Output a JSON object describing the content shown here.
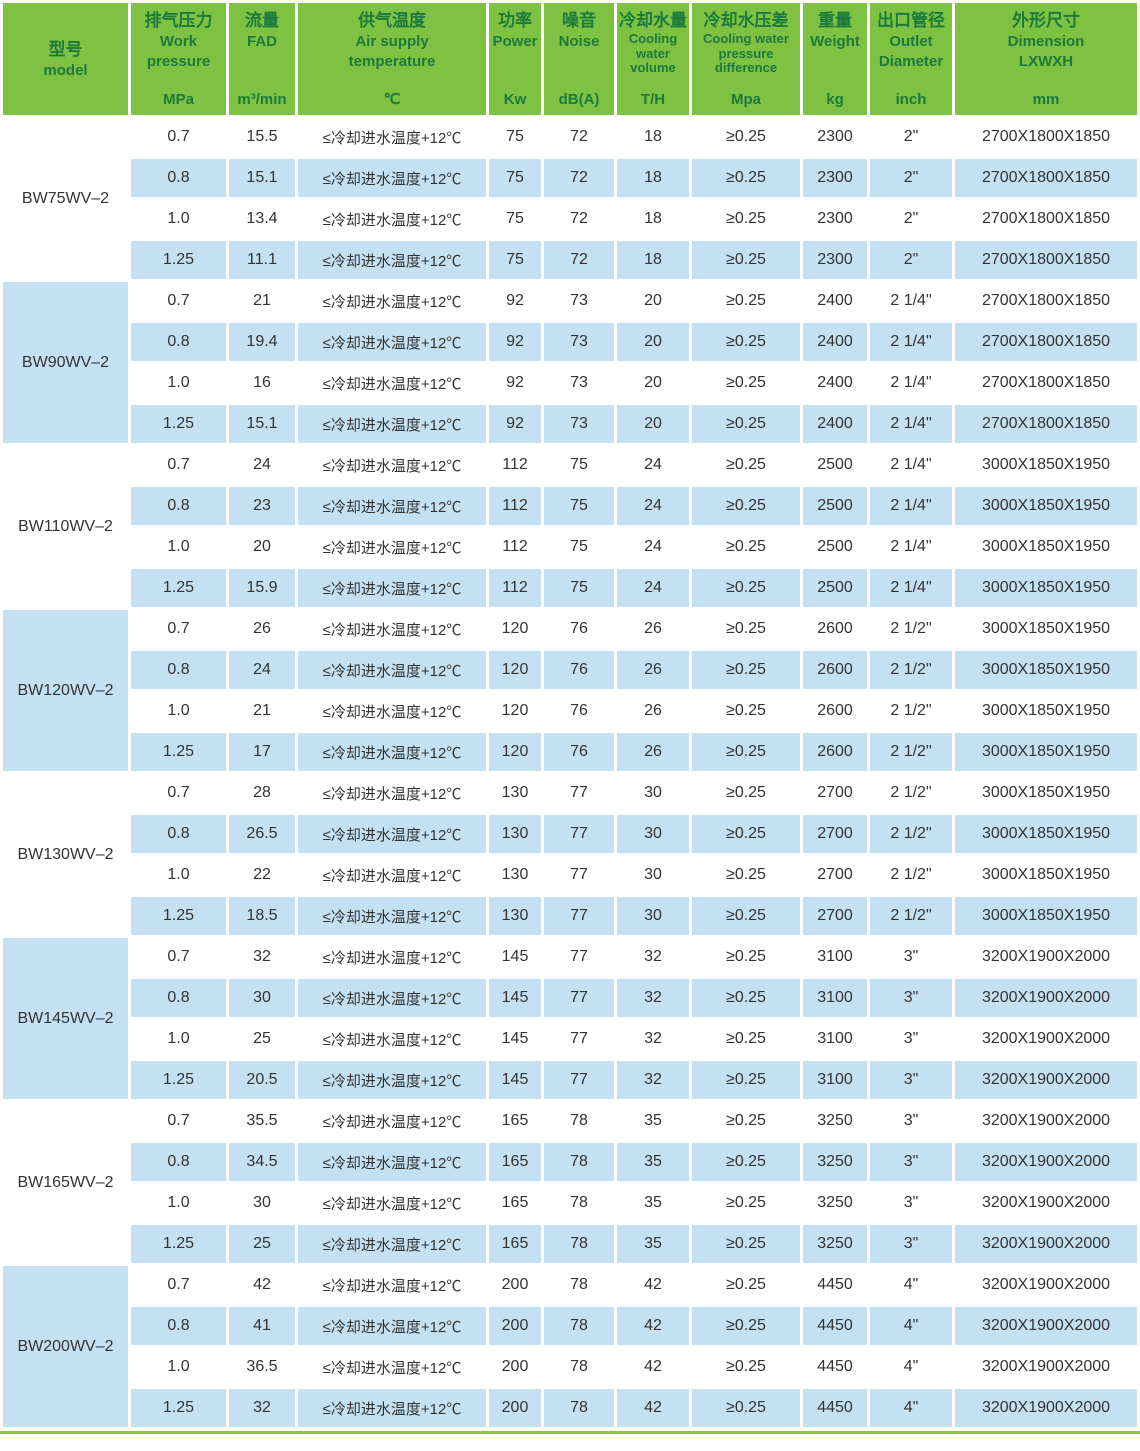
{
  "table": {
    "colors": {
      "header_green": "#7fc241",
      "header_text_green": "#1b7a3d",
      "row_blue": "#c3e1f2",
      "row_white": "#ffffff",
      "body_text": "#333333",
      "bottom_line_green": "#8cc63f"
    },
    "header": {
      "columns": [
        {
          "id": "model",
          "cn": "型号",
          "en": [
            "model"
          ],
          "unit": "",
          "small": false,
          "center": true
        },
        {
          "id": "pressure",
          "cn": "排气压力",
          "en": [
            "Work",
            "pressure"
          ],
          "unit": "MPa",
          "small": false,
          "center": false
        },
        {
          "id": "fad",
          "cn": "流量",
          "en": [
            "FAD"
          ],
          "unit": "m³/min",
          "small": false,
          "center": false
        },
        {
          "id": "temp",
          "cn": "供气温度",
          "en": [
            "Air supply",
            "temperature"
          ],
          "unit": "℃",
          "small": false,
          "center": false
        },
        {
          "id": "power",
          "cn": "功率",
          "en": [
            "Power"
          ],
          "unit": "Kw",
          "small": false,
          "center": false
        },
        {
          "id": "noise",
          "cn": "噪音",
          "en": [
            "Noise"
          ],
          "unit": "dB(A)",
          "small": false,
          "center": false
        },
        {
          "id": "cooling",
          "cn": "冷却水量",
          "en": [
            "Cooling",
            "water",
            "volume"
          ],
          "unit": "T/H",
          "small": true,
          "center": false
        },
        {
          "id": "pressure_diff",
          "cn": "冷却水压差",
          "en": [
            "Cooling water",
            "pressure",
            "difference"
          ],
          "unit": "Mpa",
          "small": true,
          "center": false
        },
        {
          "id": "weight",
          "cn": "重量",
          "en": [
            "Weight"
          ],
          "unit": "kg",
          "small": false,
          "center": false
        },
        {
          "id": "outlet",
          "cn": "出口管径",
          "en": [
            "Outlet",
            "Diameter"
          ],
          "unit": "inch",
          "small": false,
          "center": false
        },
        {
          "id": "dimension",
          "cn": "外形尺寸",
          "en": [
            "Dimension",
            "LXWXH"
          ],
          "unit": "mm",
          "small": false,
          "center": false
        }
      ]
    },
    "groups": [
      {
        "model": "BW75WV–2",
        "rows": [
          {
            "pressure": "0.7",
            "fad": "15.5",
            "temp": "≤冷却进水温度+12℃",
            "power": "75",
            "noise": "72",
            "cooling": "18",
            "pressure_diff": "≥0.25",
            "weight": "2300",
            "outlet": "2\"",
            "dimension": "2700X1800X1850"
          },
          {
            "pressure": "0.8",
            "fad": "15.1",
            "temp": "≤冷却进水温度+12℃",
            "power": "75",
            "noise": "72",
            "cooling": "18",
            "pressure_diff": "≥0.25",
            "weight": "2300",
            "outlet": "2\"",
            "dimension": "2700X1800X1850"
          },
          {
            "pressure": "1.0",
            "fad": "13.4",
            "temp": "≤冷却进水温度+12℃",
            "power": "75",
            "noise": "72",
            "cooling": "18",
            "pressure_diff": "≥0.25",
            "weight": "2300",
            "outlet": "2\"",
            "dimension": "2700X1800X1850"
          },
          {
            "pressure": "1.25",
            "fad": "11.1",
            "temp": "≤冷却进水温度+12℃",
            "power": "75",
            "noise": "72",
            "cooling": "18",
            "pressure_diff": "≥0.25",
            "weight": "2300",
            "outlet": "2\"",
            "dimension": "2700X1800X1850"
          }
        ]
      },
      {
        "model": "BW90WV–2",
        "rows": [
          {
            "pressure": "0.7",
            "fad": "21",
            "temp": "≤冷却进水温度+12℃",
            "power": "92",
            "noise": "73",
            "cooling": "20",
            "pressure_diff": "≥0.25",
            "weight": "2400",
            "outlet": "2 1/4\"",
            "dimension": "2700X1800X1850"
          },
          {
            "pressure": "0.8",
            "fad": "19.4",
            "temp": "≤冷却进水温度+12℃",
            "power": "92",
            "noise": "73",
            "cooling": "20",
            "pressure_diff": "≥0.25",
            "weight": "2400",
            "outlet": "2 1/4\"",
            "dimension": "2700X1800X1850"
          },
          {
            "pressure": "1.0",
            "fad": "16",
            "temp": "≤冷却进水温度+12℃",
            "power": "92",
            "noise": "73",
            "cooling": "20",
            "pressure_diff": "≥0.25",
            "weight": "2400",
            "outlet": "2 1/4\"",
            "dimension": "2700X1800X1850"
          },
          {
            "pressure": "1.25",
            "fad": "15.1",
            "temp": "≤冷却进水温度+12℃",
            "power": "92",
            "noise": "73",
            "cooling": "20",
            "pressure_diff": "≥0.25",
            "weight": "2400",
            "outlet": "2 1/4\"",
            "dimension": "2700X1800X1850"
          }
        ]
      },
      {
        "model": "BW110WV–2",
        "rows": [
          {
            "pressure": "0.7",
            "fad": "24",
            "temp": "≤冷却进水温度+12℃",
            "power": "112",
            "noise": "75",
            "cooling": "24",
            "pressure_diff": "≥0.25",
            "weight": "2500",
            "outlet": "2 1/4\"",
            "dimension": "3000X1850X1950"
          },
          {
            "pressure": "0.8",
            "fad": "23",
            "temp": "≤冷却进水温度+12℃",
            "power": "112",
            "noise": "75",
            "cooling": "24",
            "pressure_diff": "≥0.25",
            "weight": "2500",
            "outlet": "2 1/4\"",
            "dimension": "3000X1850X1950"
          },
          {
            "pressure": "1.0",
            "fad": "20",
            "temp": "≤冷却进水温度+12℃",
            "power": "112",
            "noise": "75",
            "cooling": "24",
            "pressure_diff": "≥0.25",
            "weight": "2500",
            "outlet": "2 1/4\"",
            "dimension": "3000X1850X1950"
          },
          {
            "pressure": "1.25",
            "fad": "15.9",
            "temp": "≤冷却进水温度+12℃",
            "power": "112",
            "noise": "75",
            "cooling": "24",
            "pressure_diff": "≥0.25",
            "weight": "2500",
            "outlet": "2 1/4\"",
            "dimension": "3000X1850X1950"
          }
        ]
      },
      {
        "model": "BW120WV–2",
        "rows": [
          {
            "pressure": "0.7",
            "fad": "26",
            "temp": "≤冷却进水温度+12℃",
            "power": "120",
            "noise": "76",
            "cooling": "26",
            "pressure_diff": "≥0.25",
            "weight": "2600",
            "outlet": "2 1/2\"",
            "dimension": "3000X1850X1950"
          },
          {
            "pressure": "0.8",
            "fad": "24",
            "temp": "≤冷却进水温度+12℃",
            "power": "120",
            "noise": "76",
            "cooling": "26",
            "pressure_diff": "≥0.25",
            "weight": "2600",
            "outlet": "2 1/2\"",
            "dimension": "3000X1850X1950"
          },
          {
            "pressure": "1.0",
            "fad": "21",
            "temp": "≤冷却进水温度+12℃",
            "power": "120",
            "noise": "76",
            "cooling": "26",
            "pressure_diff": "≥0.25",
            "weight": "2600",
            "outlet": "2 1/2\"",
            "dimension": "3000X1850X1950"
          },
          {
            "pressure": "1.25",
            "fad": "17",
            "temp": "≤冷却进水温度+12℃",
            "power": "120",
            "noise": "76",
            "cooling": "26",
            "pressure_diff": "≥0.25",
            "weight": "2600",
            "outlet": "2 1/2\"",
            "dimension": "3000X1850X1950"
          }
        ]
      },
      {
        "model": "BW130WV–2",
        "rows": [
          {
            "pressure": "0.7",
            "fad": "28",
            "temp": "≤冷却进水温度+12℃",
            "power": "130",
            "noise": "77",
            "cooling": "30",
            "pressure_diff": "≥0.25",
            "weight": "2700",
            "outlet": "2 1/2\"",
            "dimension": "3000X1850X1950"
          },
          {
            "pressure": "0.8",
            "fad": "26.5",
            "temp": "≤冷却进水温度+12℃",
            "power": "130",
            "noise": "77",
            "cooling": "30",
            "pressure_diff": "≥0.25",
            "weight": "2700",
            "outlet": "2 1/2\"",
            "dimension": "3000X1850X1950"
          },
          {
            "pressure": "1.0",
            "fad": "22",
            "temp": "≤冷却进水温度+12℃",
            "power": "130",
            "noise": "77",
            "cooling": "30",
            "pressure_diff": "≥0.25",
            "weight": "2700",
            "outlet": "2 1/2\"",
            "dimension": "3000X1850X1950"
          },
          {
            "pressure": "1.25",
            "fad": "18.5",
            "temp": "≤冷却进水温度+12℃",
            "power": "130",
            "noise": "77",
            "cooling": "30",
            "pressure_diff": "≥0.25",
            "weight": "2700",
            "outlet": "2 1/2\"",
            "dimension": "3000X1850X1950"
          }
        ]
      },
      {
        "model": "BW145WV–2",
        "rows": [
          {
            "pressure": "0.7",
            "fad": "32",
            "temp": "≤冷却进水温度+12℃",
            "power": "145",
            "noise": "77",
            "cooling": "32",
            "pressure_diff": "≥0.25",
            "weight": "3100",
            "outlet": "3\"",
            "dimension": "3200X1900X2000"
          },
          {
            "pressure": "0.8",
            "fad": "30",
            "temp": "≤冷却进水温度+12℃",
            "power": "145",
            "noise": "77",
            "cooling": "32",
            "pressure_diff": "≥0.25",
            "weight": "3100",
            "outlet": "3\"",
            "dimension": "3200X1900X2000"
          },
          {
            "pressure": "1.0",
            "fad": "25",
            "temp": "≤冷却进水温度+12℃",
            "power": "145",
            "noise": "77",
            "cooling": "32",
            "pressure_diff": "≥0.25",
            "weight": "3100",
            "outlet": "3\"",
            "dimension": "3200X1900X2000"
          },
          {
            "pressure": "1.25",
            "fad": "20.5",
            "temp": "≤冷却进水温度+12℃",
            "power": "145",
            "noise": "77",
            "cooling": "32",
            "pressure_diff": "≥0.25",
            "weight": "3100",
            "outlet": "3\"",
            "dimension": "3200X1900X2000"
          }
        ]
      },
      {
        "model": "BW165WV–2",
        "rows": [
          {
            "pressure": "0.7",
            "fad": "35.5",
            "temp": "≤冷却进水温度+12℃",
            "power": "165",
            "noise": "78",
            "cooling": "35",
            "pressure_diff": "≥0.25",
            "weight": "3250",
            "outlet": "3\"",
            "dimension": "3200X1900X2000"
          },
          {
            "pressure": "0.8",
            "fad": "34.5",
            "temp": "≤冷却进水温度+12℃",
            "power": "165",
            "noise": "78",
            "cooling": "35",
            "pressure_diff": "≥0.25",
            "weight": "3250",
            "outlet": "3\"",
            "dimension": "3200X1900X2000"
          },
          {
            "pressure": "1.0",
            "fad": "30",
            "temp": "≤冷却进水温度+12℃",
            "power": "165",
            "noise": "78",
            "cooling": "35",
            "pressure_diff": "≥0.25",
            "weight": "3250",
            "outlet": "3\"",
            "dimension": "3200X1900X2000"
          },
          {
            "pressure": "1.25",
            "fad": "25",
            "temp": "≤冷却进水温度+12℃",
            "power": "165",
            "noise": "78",
            "cooling": "35",
            "pressure_diff": "≥0.25",
            "weight": "3250",
            "outlet": "3\"",
            "dimension": "3200X1900X2000"
          }
        ]
      },
      {
        "model": "BW200WV–2",
        "rows": [
          {
            "pressure": "0.7",
            "fad": "42",
            "temp": "≤冷却进水温度+12℃",
            "power": "200",
            "noise": "78",
            "cooling": "42",
            "pressure_diff": "≥0.25",
            "weight": "4450",
            "outlet": "4\"",
            "dimension": "3200X1900X2000"
          },
          {
            "pressure": "0.8",
            "fad": "41",
            "temp": "≤冷却进水温度+12℃",
            "power": "200",
            "noise": "78",
            "cooling": "42",
            "pressure_diff": "≥0.25",
            "weight": "4450",
            "outlet": "4\"",
            "dimension": "3200X1900X2000"
          },
          {
            "pressure": "1.0",
            "fad": "36.5",
            "temp": "≤冷却进水温度+12℃",
            "power": "200",
            "noise": "78",
            "cooling": "42",
            "pressure_diff": "≥0.25",
            "weight": "4450",
            "outlet": "4\"",
            "dimension": "3200X1900X2000"
          },
          {
            "pressure": "1.25",
            "fad": "32",
            "temp": "≤冷却进水温度+12℃",
            "power": "200",
            "noise": "78",
            "cooling": "42",
            "pressure_diff": "≥0.25",
            "weight": "4450",
            "outlet": "4\"",
            "dimension": "3200X1900X2000"
          }
        ]
      }
    ]
  }
}
